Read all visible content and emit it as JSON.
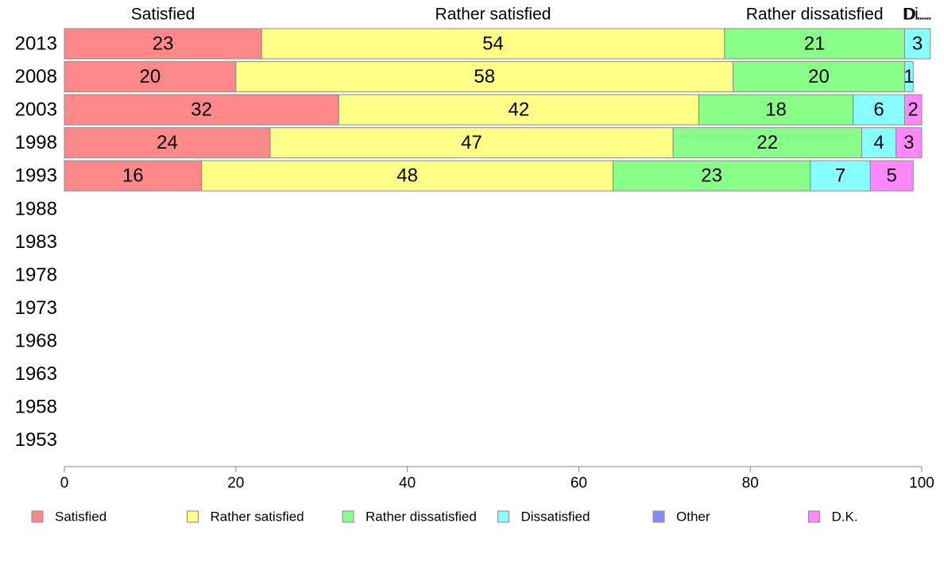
{
  "chart_data": {
    "type": "bar",
    "orientation": "horizontal",
    "stacked": true,
    "categories": [
      "2013",
      "2008",
      "2003",
      "1998",
      "1993",
      "1988",
      "1983",
      "1978",
      "1973",
      "1968",
      "1963",
      "1958",
      "1953"
    ],
    "series": [
      {
        "name": "Satisfied",
        "color": "#ff8888",
        "values": [
          23,
          20,
          32,
          24,
          16,
          null,
          null,
          null,
          null,
          null,
          null,
          null,
          null
        ]
      },
      {
        "name": "Rather satisfied",
        "color": "#ffff88",
        "values": [
          54,
          58,
          42,
          47,
          48,
          null,
          null,
          null,
          null,
          null,
          null,
          null,
          null
        ]
      },
      {
        "name": "Rather dissatisfied",
        "color": "#88ff88",
        "values": [
          21,
          20,
          18,
          22,
          23,
          null,
          null,
          null,
          null,
          null,
          null,
          null,
          null
        ]
      },
      {
        "name": "Dissatisfied",
        "color": "#88ffff",
        "values": [
          3,
          1,
          6,
          4,
          7,
          null,
          null,
          null,
          null,
          null,
          null,
          null,
          null
        ]
      },
      {
        "name": "Other",
        "color": "#8888ff",
        "values": [
          0,
          0,
          0,
          0,
          0,
          null,
          null,
          null,
          null,
          null,
          null,
          null,
          null
        ]
      },
      {
        "name": "D.K.",
        "color": "#ff88ff",
        "values": [
          0,
          0,
          2,
          3,
          5,
          null,
          null,
          null,
          null,
          null,
          null,
          null,
          null
        ]
      }
    ],
    "top_labels": [
      "Satisfied",
      "Rather satisfied",
      "Rather dissatisfied",
      "Di...",
      "D..."
    ],
    "xlim": [
      0,
      100
    ],
    "xticks": [
      0,
      20,
      40,
      60,
      80,
      100
    ],
    "xlabel": "",
    "ylabel": "",
    "title": "",
    "grid": false,
    "legend_position": "bottom"
  }
}
